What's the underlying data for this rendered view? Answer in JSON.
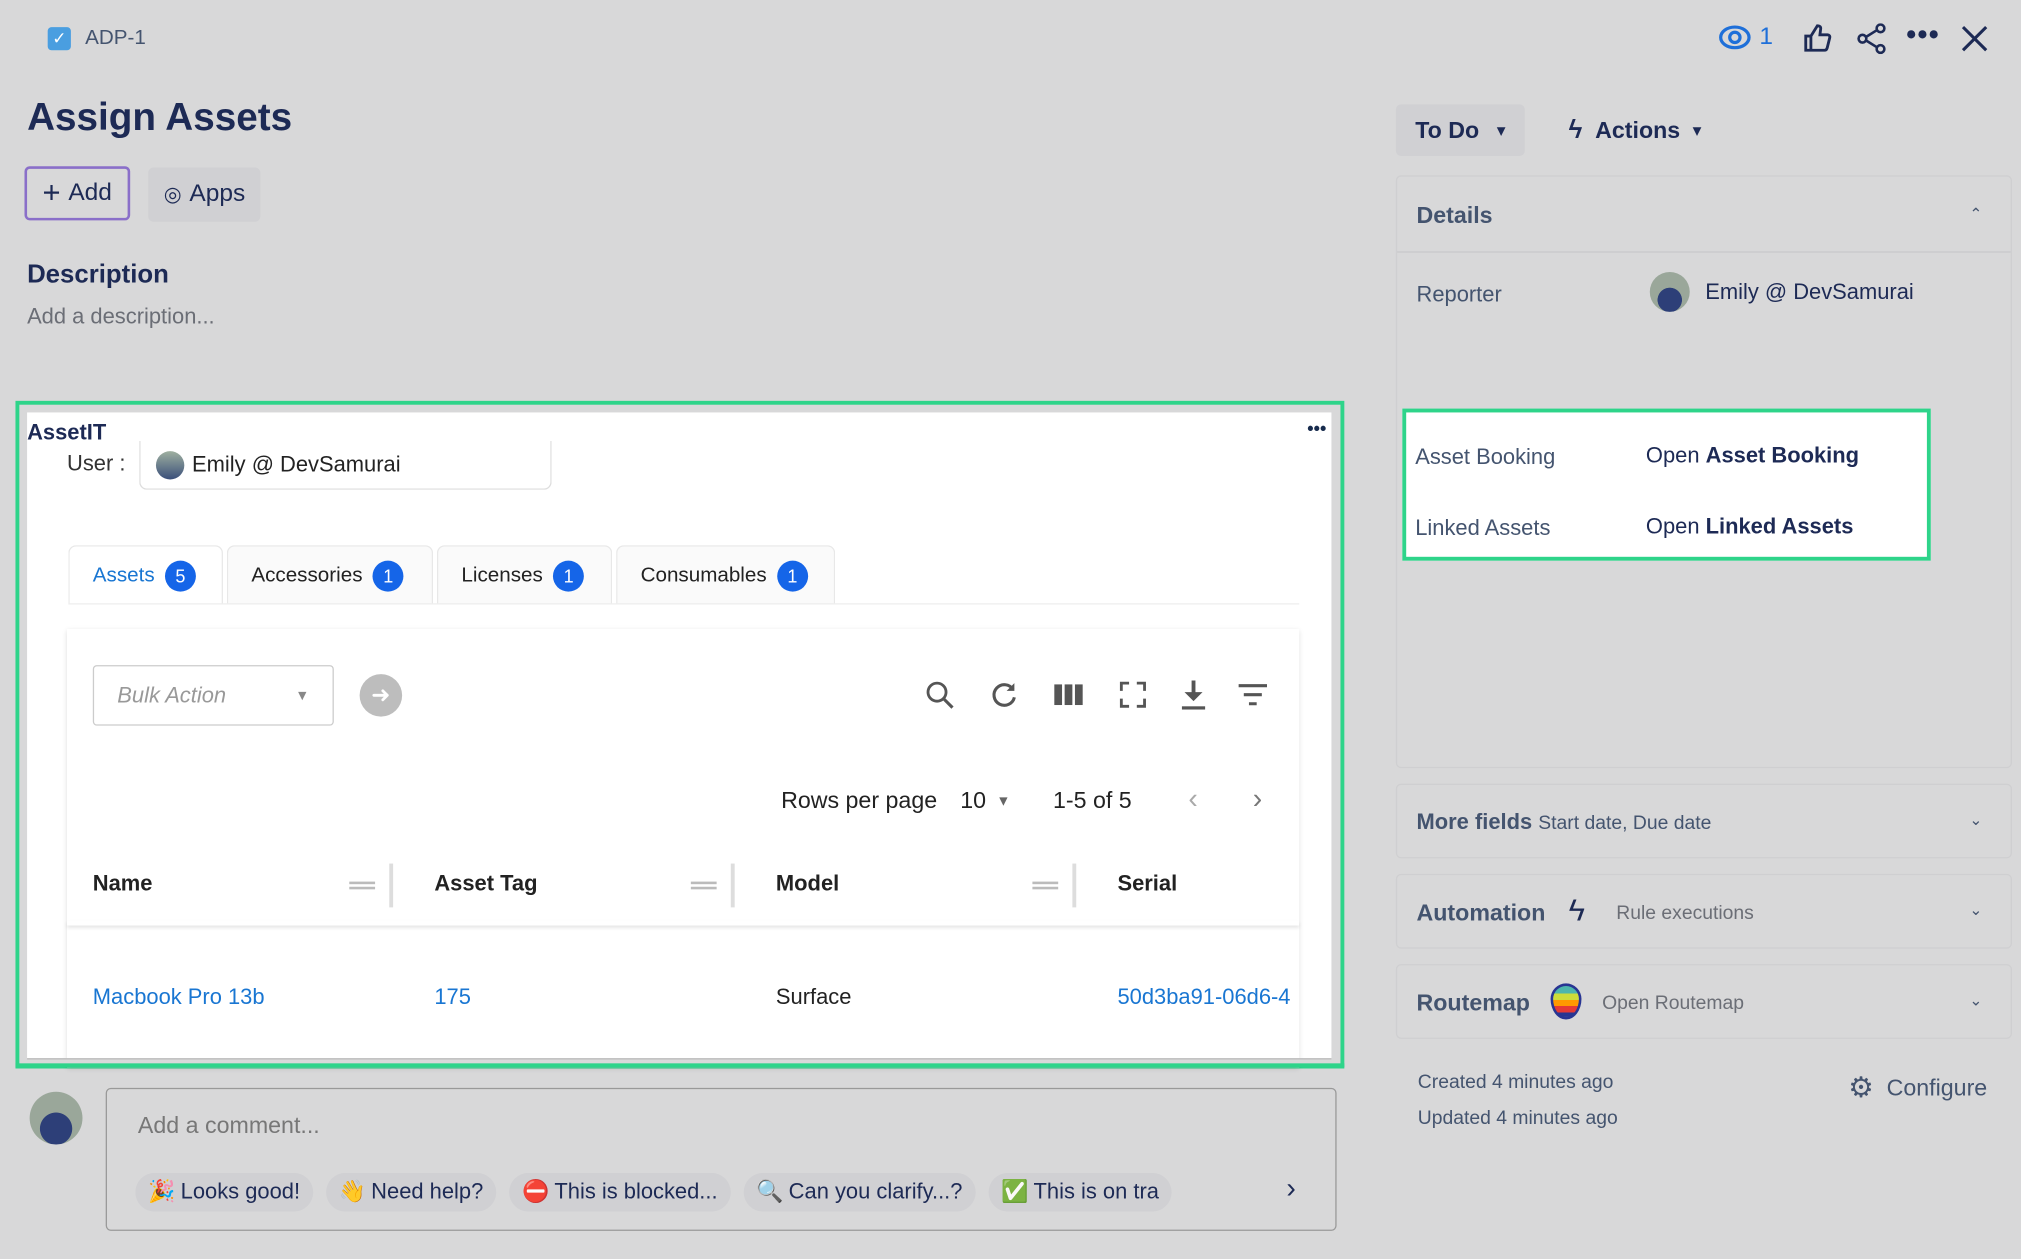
{
  "header": {
    "issue_key": "ADP-1",
    "watch_count": "1"
  },
  "issue": {
    "title": "Assign Assets",
    "add_label": "Add",
    "apps_label": "Apps",
    "description_heading": "Description",
    "description_placeholder": "Add a description..."
  },
  "assetit": {
    "title": "AssetIT",
    "user_label": "User :",
    "user_value": "Emily @ DevSamurai",
    "tabs": [
      {
        "label": "Assets",
        "count": "5",
        "active": true
      },
      {
        "label": "Accessories",
        "count": "1"
      },
      {
        "label": "Licenses",
        "count": "1"
      },
      {
        "label": "Consumables",
        "count": "1"
      }
    ],
    "bulk_action_placeholder": "Bulk Action",
    "rows_per_page_label": "Rows per page",
    "rows_per_page_value": "10",
    "range_text": "1-5 of 5",
    "columns": [
      "Name",
      "Asset Tag",
      "Model",
      "Serial"
    ],
    "rows": [
      {
        "name": "Macbook Pro 13b",
        "asset_tag": "175",
        "model": "Surface",
        "serial": "50d3ba91-06d6-4"
      }
    ]
  },
  "comment": {
    "placeholder": "Add a comment...",
    "chips": [
      {
        "emoji": "🎉",
        "label": "Looks good!"
      },
      {
        "emoji": "👋",
        "label": "Need help?"
      },
      {
        "emoji": "⛔",
        "label": "This is blocked..."
      },
      {
        "emoji": "🔍",
        "label": "Can you clarify...?"
      },
      {
        "emoji": "✅",
        "label": "This is on tra"
      }
    ]
  },
  "sidebar": {
    "status": "To Do",
    "actions": "Actions",
    "details_title": "Details",
    "reporter_label": "Reporter",
    "reporter_value": "Emily @ DevSamurai",
    "asset_booking_label": "Asset Booking",
    "asset_booking_open": "Open",
    "asset_booking_link": "Asset Booking",
    "linked_assets_label": "Linked Assets",
    "linked_assets_open": "Open",
    "linked_assets_link": "Linked Assets",
    "more_fields_title": "More fields",
    "more_fields_sub": "Start date, Due date",
    "automation_title": "Automation",
    "automation_sub": "Rule executions",
    "routemap_title": "Routemap",
    "routemap_sub": "Open Routemap",
    "created": "Created 4 minutes ago",
    "updated": "Updated 4 minutes ago",
    "configure": "Configure"
  },
  "colors": {
    "highlight": "#2ed48a",
    "accent": "#1565e8",
    "link": "#1976d2"
  }
}
